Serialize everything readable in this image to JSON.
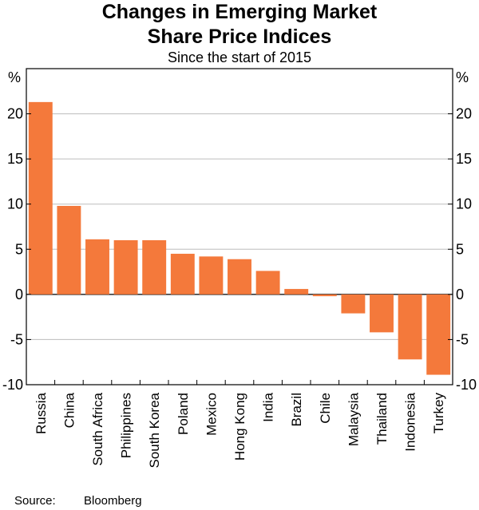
{
  "chart_data": {
    "type": "bar",
    "title_line1": "Changes in Emerging Market",
    "title_line2": "Share Price Indices",
    "subtitle": "Since the start of 2015",
    "ylabel_left": "%",
    "ylabel_right": "%",
    "ylim": [
      -10,
      25
    ],
    "yticks": [
      -10,
      -5,
      0,
      5,
      10,
      15,
      20
    ],
    "grid": true,
    "categories": [
      "Russia",
      "China",
      "South Africa",
      "Philippines",
      "South Korea",
      "Poland",
      "Mexico",
      "Hong Kong",
      "India",
      "Brazil",
      "Chile",
      "Malaysia",
      "Thailand",
      "Indonesia",
      "Turkey"
    ],
    "values": [
      21.3,
      9.8,
      6.1,
      6.0,
      6.0,
      4.5,
      4.2,
      3.9,
      2.6,
      0.6,
      -0.2,
      -2.1,
      -4.2,
      -7.2,
      -8.9
    ],
    "bar_color": "#f4793b",
    "source_label": "Source:",
    "source_text": "Bloomberg"
  }
}
